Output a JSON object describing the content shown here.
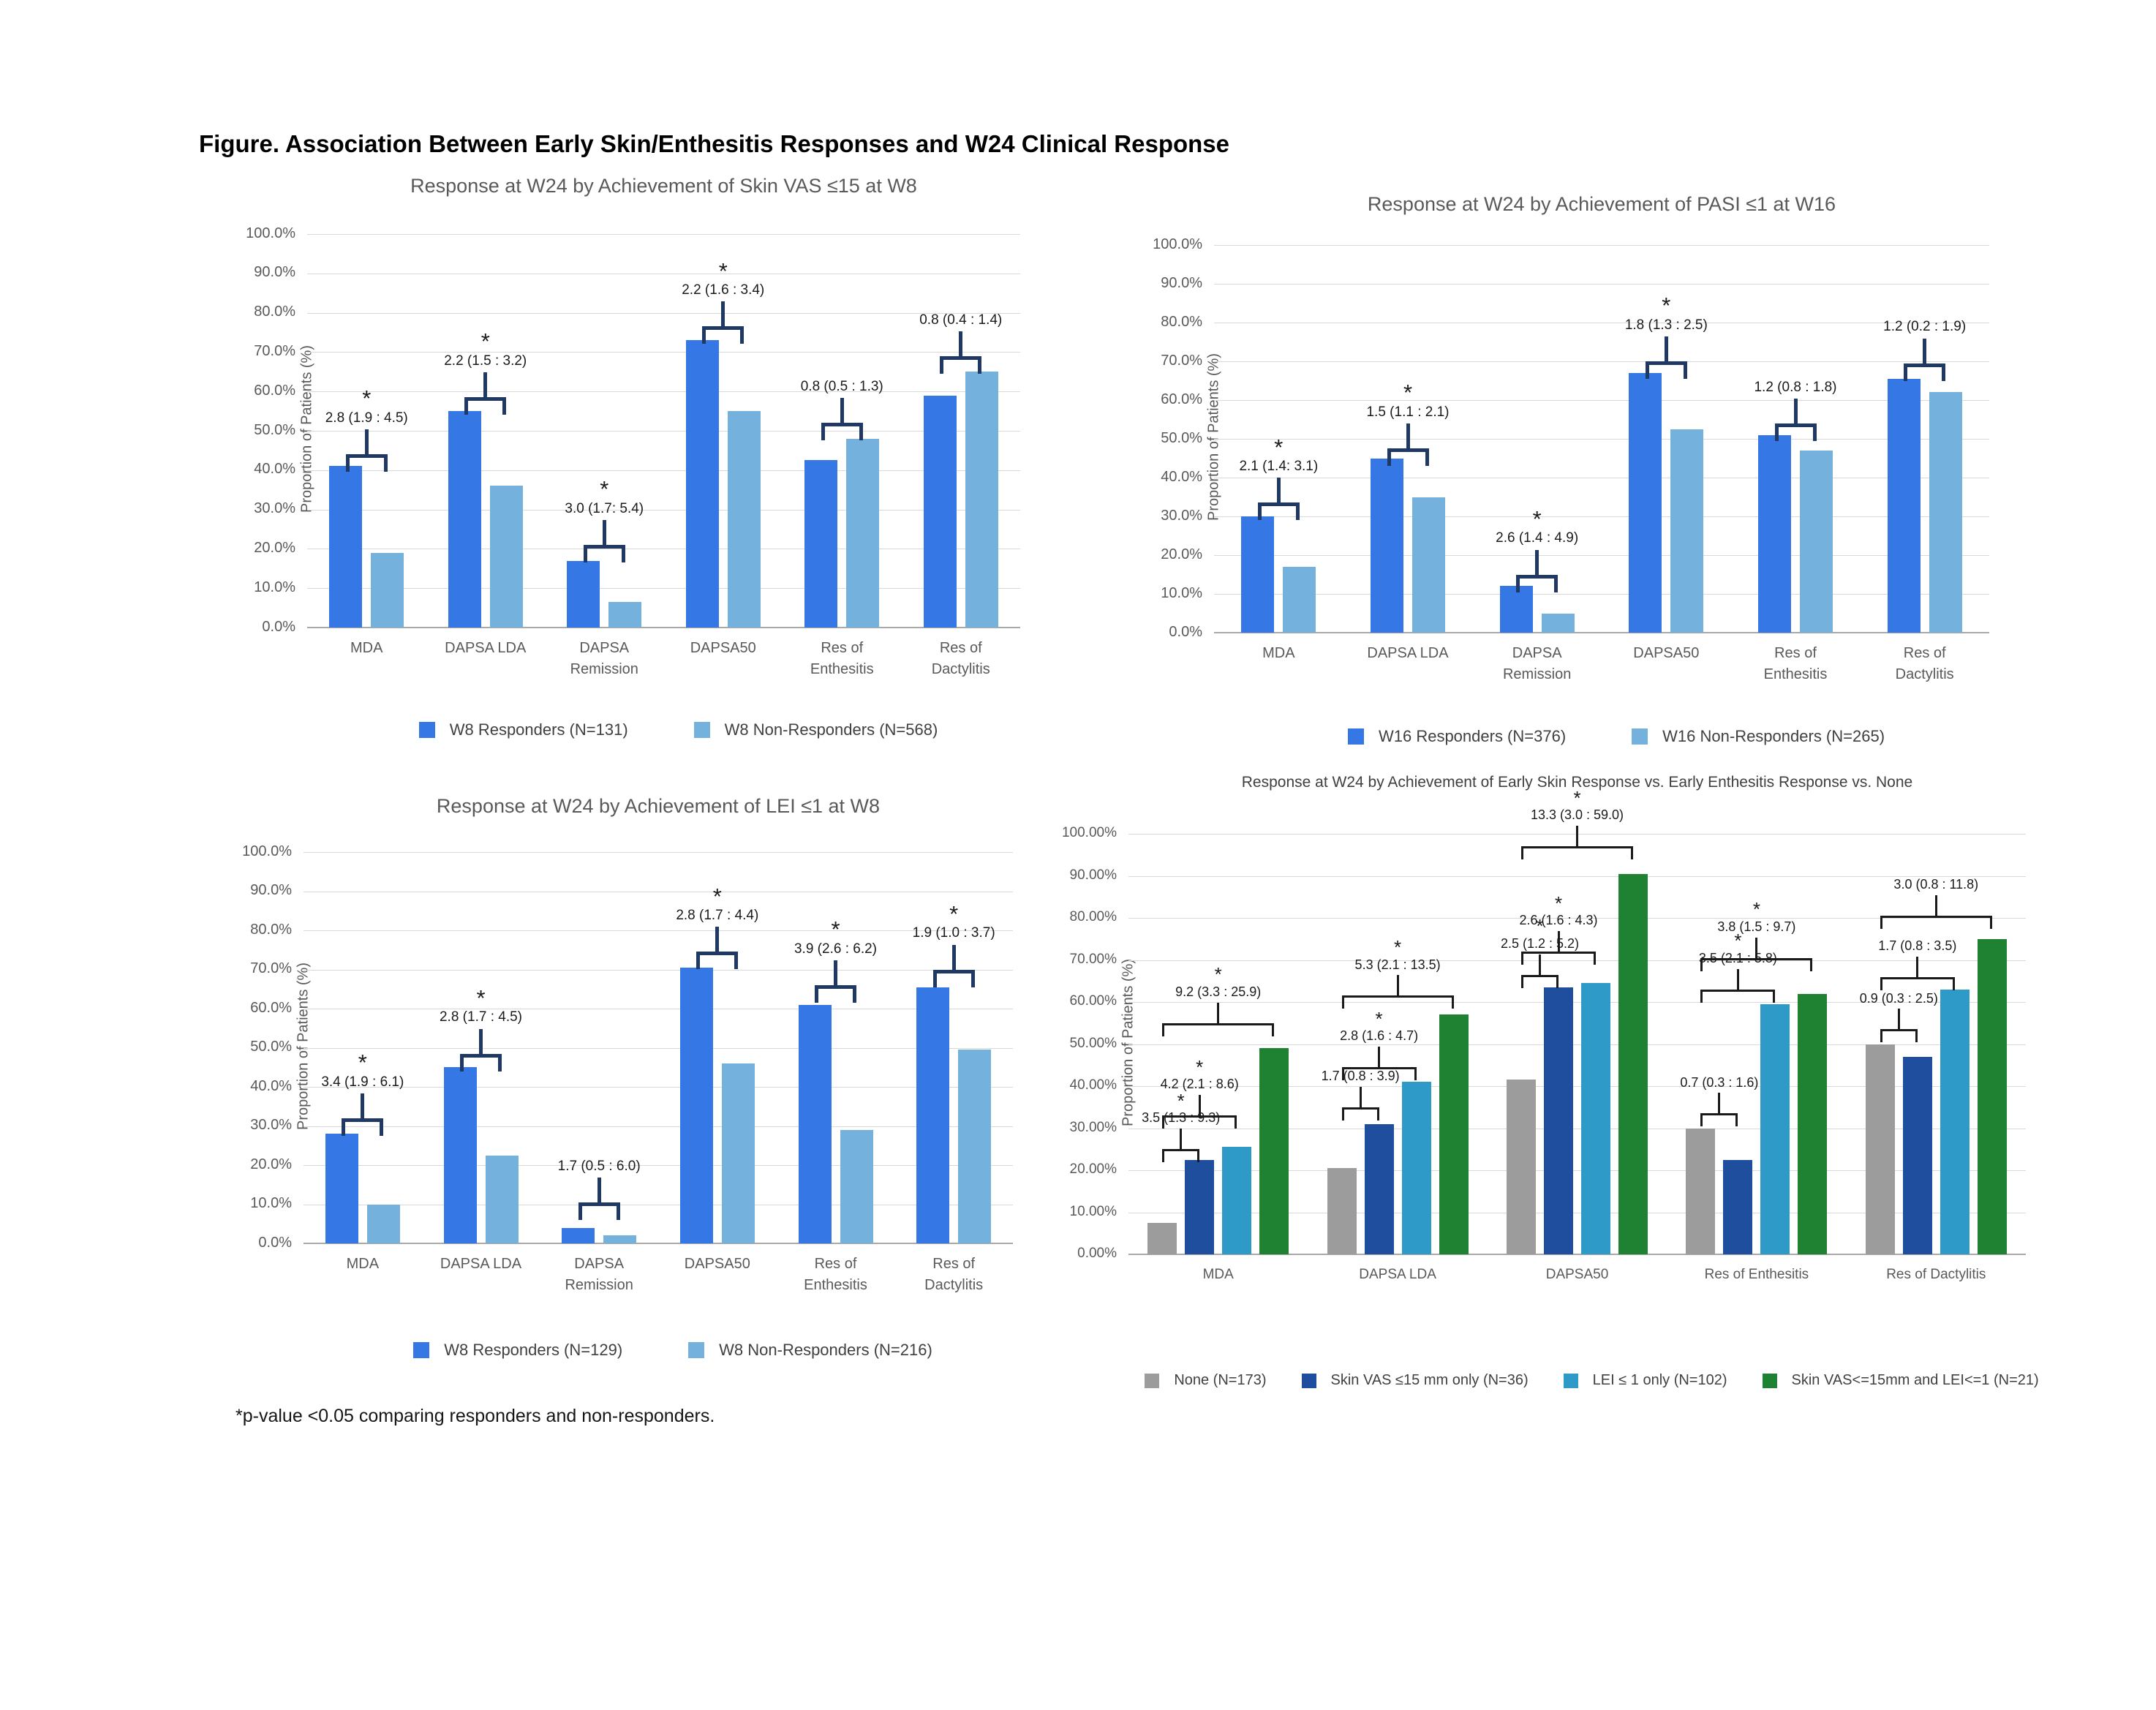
{
  "figure_title": "Figure. Association Between Early Skin/Enthesitis Responses and W24 Clinical Response",
  "footnote": "*p-value <0.05 comparing responders and non-responders.",
  "colors": {
    "responder_blue": "#3577E4",
    "nonresponder_blue": "#74B2DD",
    "bracket_navy": "#203864",
    "none_gray": "#9C9C9C",
    "skin_navy": "#1F4E9E",
    "lei_teal": "#2E9AC8",
    "both_green": "#1F8233",
    "annotation_black": "#1a1a1a",
    "title_gray": "#595959",
    "grid_gray": "#D9D9D9"
  },
  "chart_data": [
    {
      "id": "skin_vas_w8",
      "type": "bar",
      "title": "Response at W24 by Achievement of Skin VAS ≤15 at W8",
      "ylabel": "Proportion of Patients (%)",
      "ylim": [
        0,
        100
      ],
      "grid": true,
      "legend_position": "bottom",
      "ytick_labels": [
        "0.0%",
        "10.0%",
        "20.0%",
        "30.0%",
        "40.0%",
        "50.0%",
        "60.0%",
        "70.0%",
        "80.0%",
        "90.0%",
        "100.0%"
      ],
      "categories": [
        "MDA",
        "DAPSA LDA",
        "DAPSA\nRemission",
        "DAPSA50",
        "Res of\nEnthesitis",
        "Res of\nDactylitis"
      ],
      "series": [
        {
          "name": "W8 Responders (N=131)",
          "color_key": "responder_blue",
          "values": [
            41,
            55,
            17,
            73,
            42.5,
            59
          ]
        },
        {
          "name": "W8 Non-Responders (N=568)",
          "color_key": "nonresponder_blue",
          "values": [
            19,
            36,
            6.5,
            55,
            48,
            65
          ]
        }
      ],
      "annotations": [
        {
          "group": 0,
          "between": [
            0,
            1
          ],
          "label": "2.8 (1.9 : 4.5)",
          "starred": true,
          "bracket_y": 44
        },
        {
          "group": 1,
          "between": [
            0,
            1
          ],
          "label": "2.2 (1.5 : 3.2)",
          "starred": true,
          "bracket_y": 58.5
        },
        {
          "group": 2,
          "between": [
            0,
            1
          ],
          "label": "3.0 (1.7: 5.4)",
          "starred": true,
          "bracket_y": 21
        },
        {
          "group": 3,
          "between": [
            0,
            1
          ],
          "label": "2.2 (1.6 : 3.4)",
          "starred": true,
          "bracket_y": 76.5
        },
        {
          "group": 4,
          "between": [
            0,
            1
          ],
          "label": "0.8 (0.5 : 1.3)",
          "starred": false,
          "bracket_y": 52
        },
        {
          "group": 5,
          "between": [
            0,
            1
          ],
          "label": "0.8 (0.4 : 1.4)",
          "starred": false,
          "bracket_y": 69
        }
      ]
    },
    {
      "id": "pasi_w16",
      "type": "bar",
      "title": "Response at W24 by Achievement of PASI ≤1 at W16",
      "ylabel": "Proportion of Patients (%)",
      "ylim": [
        0,
        100
      ],
      "grid": true,
      "legend_position": "bottom",
      "ytick_labels": [
        "0.0%",
        "10.0%",
        "20.0%",
        "30.0%",
        "40.0%",
        "50.0%",
        "60.0%",
        "70.0%",
        "80.0%",
        "90.0%",
        "100.0%"
      ],
      "categories": [
        "MDA",
        "DAPSA LDA",
        "DAPSA\nRemission",
        "DAPSA50",
        "Res of\nEnthesitis",
        "Res of\nDactylitis"
      ],
      "series": [
        {
          "name": "W16 Responders (N=376)",
          "color_key": "responder_blue",
          "values": [
            30,
            45,
            12,
            67,
            51,
            65.5
          ]
        },
        {
          "name": "W16 Non-Responders (N=265)",
          "color_key": "nonresponder_blue",
          "values": [
            17,
            35,
            5,
            52.5,
            47,
            62
          ]
        }
      ],
      "annotations": [
        {
          "group": 0,
          "between": [
            0,
            1
          ],
          "label": "2.1 (1.4: 3.1)",
          "starred": true,
          "bracket_y": 33.5
        },
        {
          "group": 1,
          "between": [
            0,
            1
          ],
          "label": "1.5 (1.1 : 2.1)",
          "starred": true,
          "bracket_y": 47.5
        },
        {
          "group": 2,
          "between": [
            0,
            1
          ],
          "label": "2.6 (1.4 : 4.9)",
          "starred": true,
          "bracket_y": 15
        },
        {
          "group": 3,
          "between": [
            0,
            1
          ],
          "label": "1.8 (1.3 : 2.5)",
          "starred": true,
          "bracket_y": 70
        },
        {
          "group": 4,
          "between": [
            0,
            1
          ],
          "label": "1.2 (0.8 : 1.8)",
          "starred": false,
          "bracket_y": 54
        },
        {
          "group": 5,
          "between": [
            0,
            1
          ],
          "label": "1.2 (0.2 : 1.9)",
          "starred": false,
          "bracket_y": 69.5
        }
      ]
    },
    {
      "id": "lei_w8",
      "type": "bar",
      "title": "Response at W24 by Achievement of LEI ≤1 at W8",
      "ylabel": "Proportion of Patients (%)",
      "ylim": [
        0,
        100
      ],
      "grid": true,
      "legend_position": "bottom",
      "ytick_labels": [
        "0.0%",
        "10.0%",
        "20.0%",
        "30.0%",
        "40.0%",
        "50.0%",
        "60.0%",
        "70.0%",
        "80.0%",
        "90.0%",
        "100.0%"
      ],
      "categories": [
        "MDA",
        "DAPSA LDA",
        "DAPSA\nRemission",
        "DAPSA50",
        "Res of\nEnthesitis",
        "Res of\nDactylitis"
      ],
      "series": [
        {
          "name": "W8 Responders (N=129)",
          "color_key": "responder_blue",
          "values": [
            28,
            45,
            4,
            70.5,
            61,
            65.5
          ]
        },
        {
          "name": "W8 Non-Responders (N=216)",
          "color_key": "nonresponder_blue",
          "values": [
            10,
            22.5,
            2,
            46,
            29,
            49.5
          ]
        }
      ],
      "annotations": [
        {
          "group": 0,
          "between": [
            0,
            1
          ],
          "label": "3.4 (1.9 : 6.1)",
          "starred": true,
          "bracket_y": 32
        },
        {
          "group": 1,
          "between": [
            0,
            1
          ],
          "label": "2.8 (1.7 : 4.5)",
          "starred": true,
          "bracket_y": 48.5
        },
        {
          "group": 2,
          "between": [
            0,
            1
          ],
          "label": "1.7 (0.5 : 6.0)",
          "starred": false,
          "bracket_y": 10.5
        },
        {
          "group": 3,
          "between": [
            0,
            1
          ],
          "label": "2.8 (1.7 : 4.4)",
          "starred": true,
          "bracket_y": 74.5
        },
        {
          "group": 4,
          "between": [
            0,
            1
          ],
          "label": "3.9 (2.6 : 6.2)",
          "starred": true,
          "bracket_y": 66
        },
        {
          "group": 5,
          "between": [
            0,
            1
          ],
          "label": "1.9 (1.0 : 3.7)",
          "starred": true,
          "bracket_y": 70
        }
      ]
    },
    {
      "id": "skin_vs_enthesitis_vs_none",
      "type": "bar",
      "title": "Response at W24 by Achievement of Early Skin Response vs. Early Enthesitis Response vs. None",
      "ylabel": "Proportion of Patients (%)",
      "ylim": [
        0,
        100
      ],
      "grid": true,
      "legend_position": "bottom",
      "ytick_labels": [
        "0.00%",
        "10.00%",
        "20.00%",
        "30.00%",
        "40.00%",
        "50.00%",
        "60.00%",
        "70.00%",
        "80.00%",
        "90.00%",
        "100.00%"
      ],
      "categories": [
        "MDA",
        "DAPSA LDA",
        "DAPSA50",
        "Res of Enthesitis",
        "Res of Dactylitis"
      ],
      "series": [
        {
          "name": "None (N=173)",
          "color_key": "none_gray",
          "values": [
            7.5,
            20.5,
            41.5,
            30,
            50
          ]
        },
        {
          "name": "Skin VAS ≤15 mm only (N=36)",
          "color_key": "skin_navy",
          "values": [
            22.5,
            31,
            63.5,
            22.5,
            47
          ]
        },
        {
          "name": "LEI ≤ 1 only (N=102)",
          "color_key": "lei_teal",
          "values": [
            25.5,
            41,
            64.5,
            59.5,
            63
          ]
        },
        {
          "name": "Skin VAS<=15mm and LEI<=1 (N=21)",
          "color_key": "both_green",
          "values": [
            49,
            57,
            90.5,
            62,
            75
          ]
        }
      ],
      "annotations": [
        {
          "group": 0,
          "between": [
            0,
            1
          ],
          "label": "3.5 (1.3 : 9.3)",
          "starred": true,
          "bracket_y": 25
        },
        {
          "group": 0,
          "between": [
            0,
            2
          ],
          "label": "4.2 (2.1 : 8.6)",
          "starred": true,
          "bracket_y": 33
        },
        {
          "group": 0,
          "between": [
            0,
            3
          ],
          "label": "9.2 (3.3 : 25.9)",
          "starred": true,
          "bracket_y": 55
        },
        {
          "group": 1,
          "between": [
            0,
            1
          ],
          "label": "1.7 (0.8 : 3.9)",
          "starred": false,
          "bracket_y": 35
        },
        {
          "group": 1,
          "between": [
            0,
            2
          ],
          "label": "2.8 (1.6 : 4.7)",
          "starred": true,
          "bracket_y": 44.5
        },
        {
          "group": 1,
          "between": [
            0,
            3
          ],
          "label": "5.3 (2.1 : 13.5)",
          "starred": true,
          "bracket_y": 61.5
        },
        {
          "group": 2,
          "between": [
            0,
            1
          ],
          "label": "2.5 (1.2 : 5.2)",
          "starred": true,
          "bracket_y": 66.5
        },
        {
          "group": 2,
          "between": [
            0,
            2
          ],
          "label": "2.6 (1.6 : 4.3)",
          "starred": true,
          "bracket_y": 72
        },
        {
          "group": 2,
          "between": [
            0,
            3
          ],
          "label": "13.3 (3.0 : 59.0)",
          "starred": true,
          "bracket_y": 97
        },
        {
          "group": 3,
          "between": [
            0,
            1
          ],
          "label": "0.7 (0.3 : 1.6)",
          "starred": false,
          "bracket_y": 33.5
        },
        {
          "group": 3,
          "between": [
            0,
            2
          ],
          "label": "3.5 (2.1 : 5.8)",
          "starred": true,
          "bracket_y": 63
        },
        {
          "group": 3,
          "between": [
            0,
            3
          ],
          "label": "3.8 (1.5 : 9.7)",
          "starred": true,
          "bracket_y": 70.5
        },
        {
          "group": 4,
          "between": [
            0,
            1
          ],
          "label": "0.9 (0.3 : 2.5)",
          "starred": false,
          "bracket_y": 53.5
        },
        {
          "group": 4,
          "between": [
            0,
            2
          ],
          "label": "1.7 (0.8 : 3.5)",
          "starred": false,
          "bracket_y": 66
        },
        {
          "group": 4,
          "between": [
            0,
            3
          ],
          "label": "3.0 (0.8 : 11.8)",
          "starred": false,
          "bracket_y": 80.5
        }
      ]
    }
  ]
}
